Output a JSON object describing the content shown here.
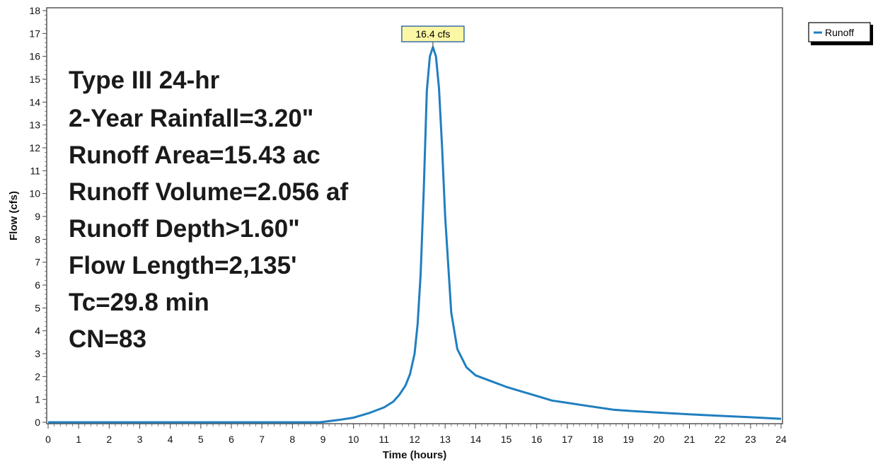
{
  "chart_data": {
    "type": "line",
    "xlabel": "Time (hours)",
    "ylabel": "Flow (cfs)",
    "xlim": [
      0,
      24
    ],
    "ylim": [
      0,
      18
    ],
    "x_ticks": [
      0,
      1,
      2,
      3,
      4,
      5,
      6,
      7,
      8,
      9,
      10,
      11,
      12,
      13,
      14,
      15,
      16,
      17,
      18,
      19,
      20,
      21,
      22,
      23,
      24
    ],
    "y_ticks": [
      0,
      1,
      2,
      3,
      4,
      5,
      6,
      7,
      8,
      9,
      10,
      11,
      12,
      13,
      14,
      15,
      16,
      17,
      18
    ],
    "grid": false,
    "legend_position": "top-right outside",
    "series": [
      {
        "name": "Runoff",
        "color": "#1f7fbf",
        "x": [
          0,
          8.9,
          9.5,
          10.0,
          10.5,
          11.0,
          11.3,
          11.5,
          11.7,
          11.85,
          12.0,
          12.1,
          12.2,
          12.3,
          12.4,
          12.5,
          12.6,
          12.7,
          12.8,
          12.9,
          13.0,
          13.2,
          13.4,
          13.7,
          14.0,
          14.5,
          15.0,
          15.5,
          16.0,
          16.5,
          17.0,
          17.5,
          18.0,
          18.5,
          19.0,
          20.0,
          21.0,
          22.0,
          23.0,
          24.0
        ],
        "values": [
          0,
          0.0,
          0.1,
          0.2,
          0.4,
          0.65,
          0.9,
          1.2,
          1.6,
          2.1,
          3.0,
          4.3,
          6.5,
          10.2,
          14.5,
          16.0,
          16.4,
          16.0,
          14.6,
          12.0,
          9.0,
          4.8,
          3.2,
          2.4,
          2.05,
          1.8,
          1.55,
          1.35,
          1.15,
          0.95,
          0.85,
          0.75,
          0.65,
          0.55,
          0.5,
          0.42,
          0.35,
          0.28,
          0.22,
          0.15
        ]
      }
    ],
    "peak_label": {
      "text": "16.4 cfs",
      "x": 12.6,
      "y": 16.4
    },
    "annotations": [
      "Type III 24-hr",
      "2-Year Rainfall=3.20\"",
      "Runoff Area=15.43 ac",
      "Runoff Volume=2.056 af",
      "Runoff Depth>1.60\"",
      "Flow Length=2,135'",
      "Tc=29.8 min",
      "CN=83"
    ]
  }
}
